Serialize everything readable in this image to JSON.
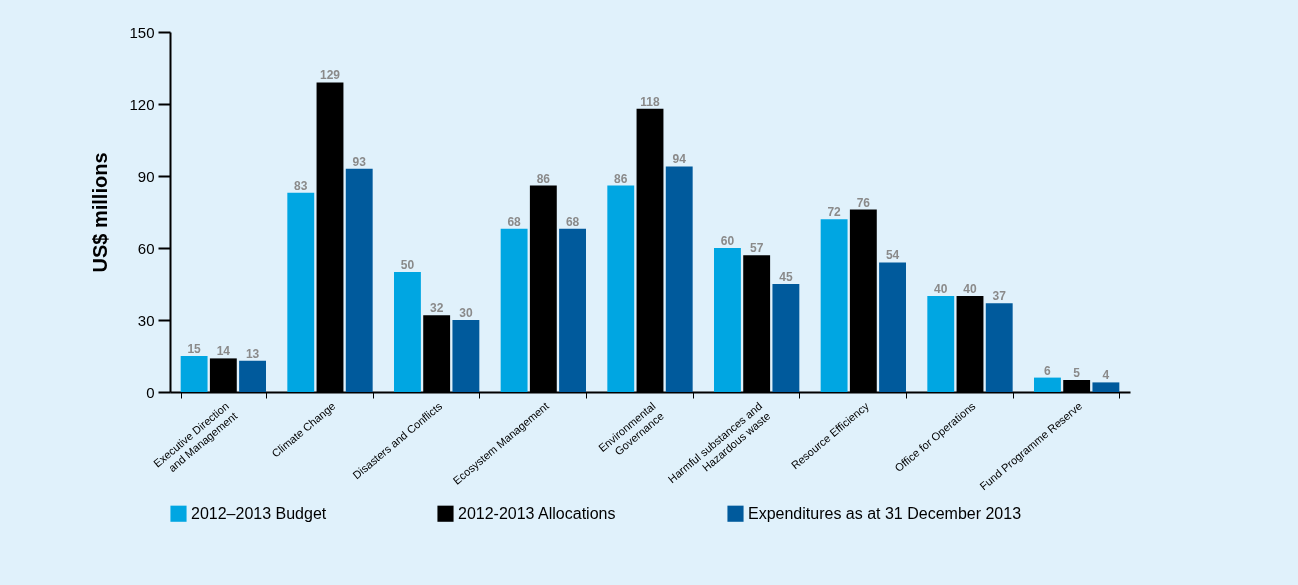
{
  "chart_data": {
    "type": "bar",
    "ylabel": "US$ millions",
    "categories": [
      "Executive Direction\nand Management",
      "Climate Change",
      "Disasters and Conflicts",
      "Ecosystem Management",
      "Environmental\nGovernance",
      "Harmful substances and\nHazardous waste",
      "Resource Efficiency",
      "Office for Operations",
      "Fund Programme Reserve"
    ],
    "series": [
      {
        "name": "2012–2013 Budget",
        "color": "#00a6e2",
        "values": [
          15,
          83,
          50,
          68,
          86,
          60,
          72,
          40,
          6
        ]
      },
      {
        "name": "2012-2013 Allocations",
        "color": "#000000",
        "values": [
          14,
          129,
          32,
          86,
          118,
          57,
          76,
          40,
          5
        ]
      },
      {
        "name": "Expenditures as at 31 December 2013",
        "color": "#005a9c",
        "values": [
          13,
          93,
          30,
          68,
          94,
          45,
          54,
          37,
          4
        ]
      }
    ],
    "ylim": [
      0,
      150
    ],
    "yticks": [
      0,
      30,
      60,
      90,
      120,
      150
    ],
    "grid": false,
    "legend": "bottom",
    "data_labels": true
  }
}
